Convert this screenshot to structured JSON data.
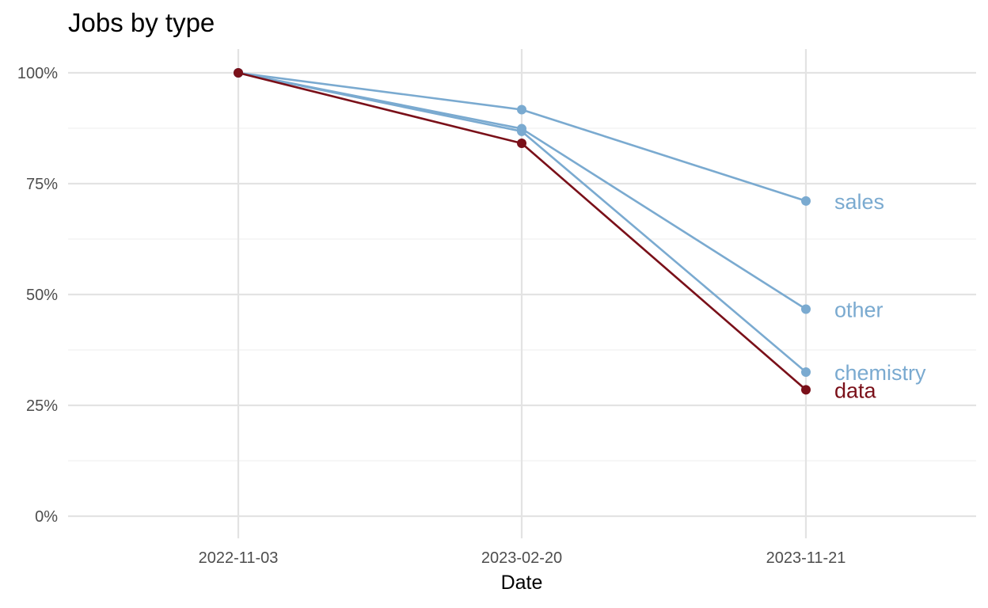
{
  "chart_data": {
    "type": "line",
    "title": "Jobs by type",
    "xlabel": "Date",
    "ylabel": "",
    "x": [
      "2022-11-03",
      "2023-02-20",
      "2023-11-21"
    ],
    "ylim": [
      0,
      1
    ],
    "y_ticks": [
      0,
      0.25,
      0.5,
      0.75,
      1.0
    ],
    "y_tick_labels": [
      "0%",
      "25%",
      "50%",
      "75%",
      "100%"
    ],
    "grid": true,
    "legend": "none (direct labels at line ends)",
    "series": [
      {
        "name": "sales",
        "values": [
          1.0,
          0.917,
          0.711
        ],
        "color": "#7aaad0"
      },
      {
        "name": "other",
        "values": [
          1.0,
          0.874,
          0.467
        ],
        "color": "#7aaad0"
      },
      {
        "name": "chemistry",
        "values": [
          1.0,
          0.868,
          0.325
        ],
        "color": "#7aaad0"
      },
      {
        "name": "data",
        "values": [
          1.0,
          0.841,
          0.285
        ],
        "color": "#7a1019"
      }
    ]
  }
}
